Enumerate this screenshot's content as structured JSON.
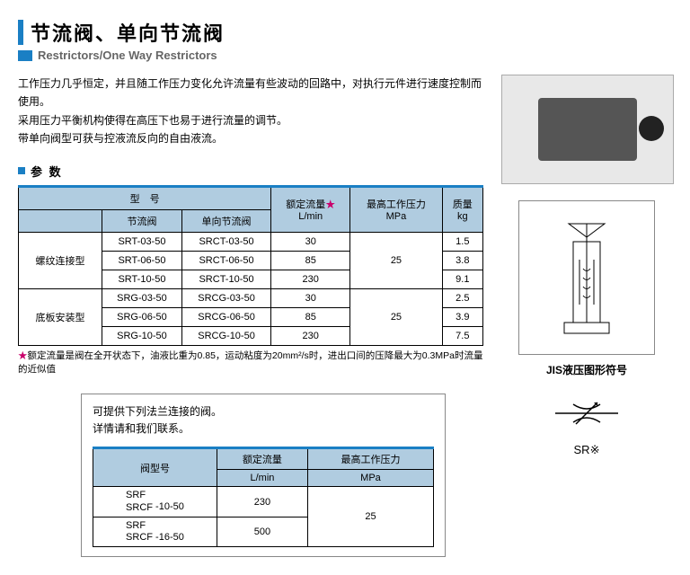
{
  "header": {
    "title": "节流阀、单向节流阀",
    "subtitle": "Restrictors/One Way Restrictors"
  },
  "description": {
    "line1": "工作压力几乎恒定，并且随工作压力变化允许流量有些波动的回路中，对执行元件进行速度控制而使用。",
    "line2": "采用压力平衡机构使得在高压下也易于进行流量的调节。",
    "line3": "带单向阀型可获与控液流反向的自由液流。"
  },
  "params_label": "参 数",
  "main_table": {
    "head": {
      "model": "型　号",
      "restrictor": "节流阀",
      "oneway": "单向节流阀",
      "flow": "额定流量",
      "flow_star": "★",
      "flow_unit": "L/min",
      "pressure": "最高工作压力",
      "pressure_unit": "MPa",
      "weight": "质量",
      "weight_unit": "kg"
    },
    "groups": [
      {
        "cat": "螺纹连接型",
        "rows": [
          {
            "a": "SRT-03-50",
            "b": "SRCT-03-50",
            "flow": "30",
            "wt": "1.5"
          },
          {
            "a": "SRT-06-50",
            "b": "SRCT-06-50",
            "flow": "85",
            "wt": "3.8"
          },
          {
            "a": "SRT-10-50",
            "b": "SRCT-10-50",
            "flow": "230",
            "wt": "9.1"
          }
        ],
        "pressure": "25"
      },
      {
        "cat": "底板安装型",
        "rows": [
          {
            "a": "SRG-03-50",
            "b": "SRCG-03-50",
            "flow": "30",
            "wt": "2.5"
          },
          {
            "a": "SRG-06-50",
            "b": "SRCG-06-50",
            "flow": "85",
            "wt": "3.9"
          },
          {
            "a": "SRG-10-50",
            "b": "SRCG-10-50",
            "flow": "230",
            "wt": "7.5"
          }
        ],
        "pressure": "25"
      }
    ]
  },
  "note": {
    "star": "★",
    "text": "额定流量是阀在全开状态下，油液比重为0.85，运动粘度为20mm²/s时，进出口间的压降最大为0.3MPa时流量的近似值"
  },
  "flange": {
    "text1": "可提供下列法兰连接的阀。",
    "text2": "详情请和我们联系。",
    "head": {
      "model": "阀型号",
      "flow": "额定流量",
      "flow_unit": "L/min",
      "pressure": "最高工作压力",
      "pressure_unit": "MPa"
    },
    "rows": [
      {
        "m1": "SRF",
        "m2": "SRCF",
        "suf": "-10-50",
        "flow": "230"
      },
      {
        "m1": "SRF",
        "m2": "SRCF",
        "suf": "-16-50",
        "flow": "500"
      }
    ],
    "pressure": "25"
  },
  "right": {
    "diag_label": "JIS液压图形符号",
    "symbol_label": "SR※"
  }
}
